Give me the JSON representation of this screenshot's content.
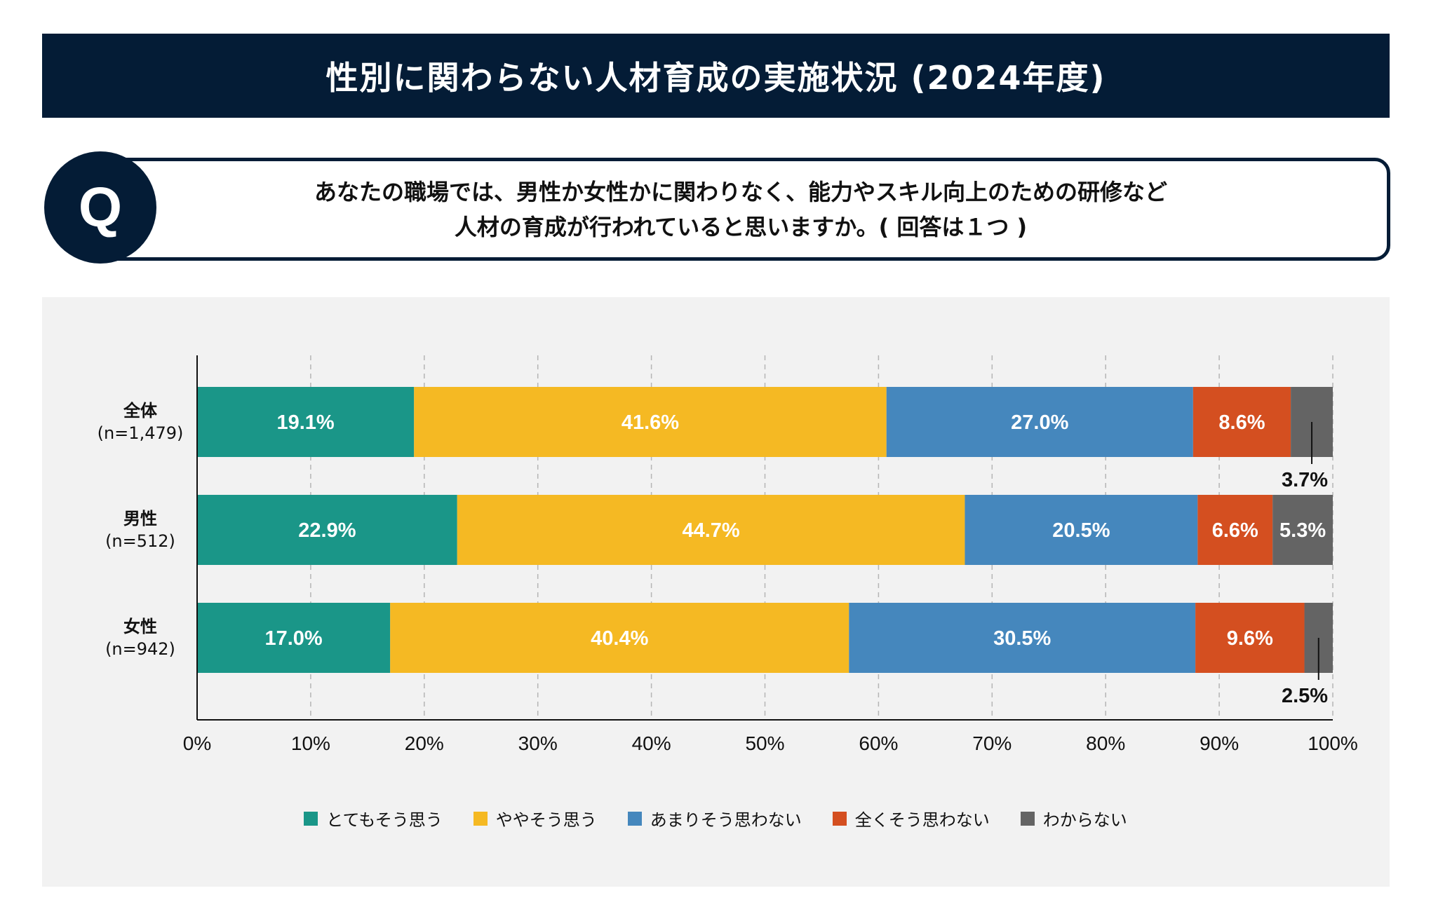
{
  "header": {
    "title": "性別に関わらない人材育成の実施状況 (2024年度)"
  },
  "question": {
    "badge": "Q",
    "line1": "あなたの職場では、男性か女性かに関わりなく、能力やスキル向上のための研修など",
    "line2": "人材の育成が行われていると思いますか。( 回答は１つ )"
  },
  "chart_data": {
    "type": "bar",
    "orientation": "horizontal",
    "stacked": true,
    "categories": [
      {
        "label": "全体",
        "n": "(n=1,479)"
      },
      {
        "label": "男性",
        "n": "(n=512)"
      },
      {
        "label": "女性",
        "n": "(n=942)"
      }
    ],
    "series": [
      {
        "name": "とてもそう思う",
        "color": "#1a9688",
        "values": [
          19.1,
          22.9,
          17.0
        ]
      },
      {
        "name": "ややそう思う",
        "color": "#f5b923",
        "values": [
          41.6,
          44.7,
          40.4
        ]
      },
      {
        "name": "あまりそう思わない",
        "color": "#4587bd",
        "values": [
          27.0,
          20.5,
          30.5
        ]
      },
      {
        "name": "全くそう思わない",
        "color": "#d44f20",
        "values": [
          8.6,
          6.6,
          9.6
        ]
      },
      {
        "name": "わからない",
        "color": "#646464",
        "values": [
          3.7,
          5.3,
          2.5
        ]
      }
    ],
    "xlim": [
      0,
      100
    ],
    "xticks": [
      "0%",
      "10%",
      "20%",
      "30%",
      "40%",
      "50%",
      "60%",
      "70%",
      "80%",
      "90%",
      "100%"
    ],
    "grid": "vertical dashed",
    "legend": "bottom"
  }
}
